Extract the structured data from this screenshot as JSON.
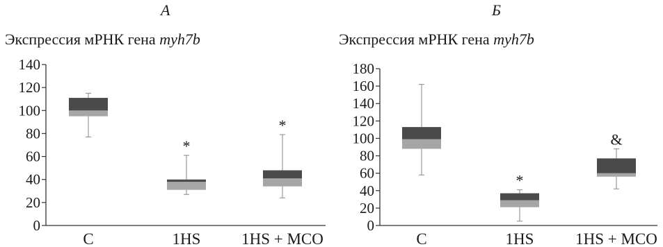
{
  "chart_data": [
    {
      "type": "box",
      "panel": "А",
      "title": {
        "prefix": "Экспрессия мРНК гена ",
        "gene": "myh7b"
      },
      "ylim": [
        0,
        140
      ],
      "yticks": [
        0,
        20,
        40,
        60,
        80,
        100,
        120,
        140
      ],
      "categories": [
        "C",
        "1HS",
        "1HS + MCO"
      ],
      "boxes": [
        {
          "category": "C",
          "min": 77,
          "q1": 95,
          "median": 100,
          "q3": 111,
          "max": 115,
          "annotation": ""
        },
        {
          "category": "1HS",
          "min": 27,
          "q1": 31,
          "median": 38,
          "q3": 40,
          "max": 61,
          "annotation": "*"
        },
        {
          "category": "1HS + MCO",
          "min": 24,
          "q1": 34,
          "median": 41,
          "q3": 48,
          "max": 79,
          "annotation": "*"
        }
      ]
    },
    {
      "type": "box",
      "panel": "Б",
      "title": {
        "prefix": "Экспрессия мРНК гена ",
        "gene": "myh7b"
      },
      "ylim": [
        0,
        180
      ],
      "yticks": [
        0,
        20,
        40,
        60,
        80,
        100,
        120,
        140,
        160,
        180
      ],
      "categories": [
        "C",
        "1HS",
        "1HS + MCO"
      ],
      "boxes": [
        {
          "category": "C",
          "min": 58,
          "q1": 88,
          "median": 99,
          "q3": 113,
          "max": 162,
          "annotation": ""
        },
        {
          "category": "1HS",
          "min": 5,
          "q1": 21,
          "median": 29,
          "q3": 37,
          "max": 41,
          "annotation": "*"
        },
        {
          "category": "1HS + MCO",
          "min": 42,
          "q1": 56,
          "median": 60,
          "q3": 77,
          "max": 88,
          "annotation": "&"
        }
      ]
    }
  ],
  "colors": {
    "upper_box": "#4a4a4a",
    "lower_box": "#a6a6a6",
    "whisker": "#9a9a9a",
    "axis": "#333333"
  }
}
